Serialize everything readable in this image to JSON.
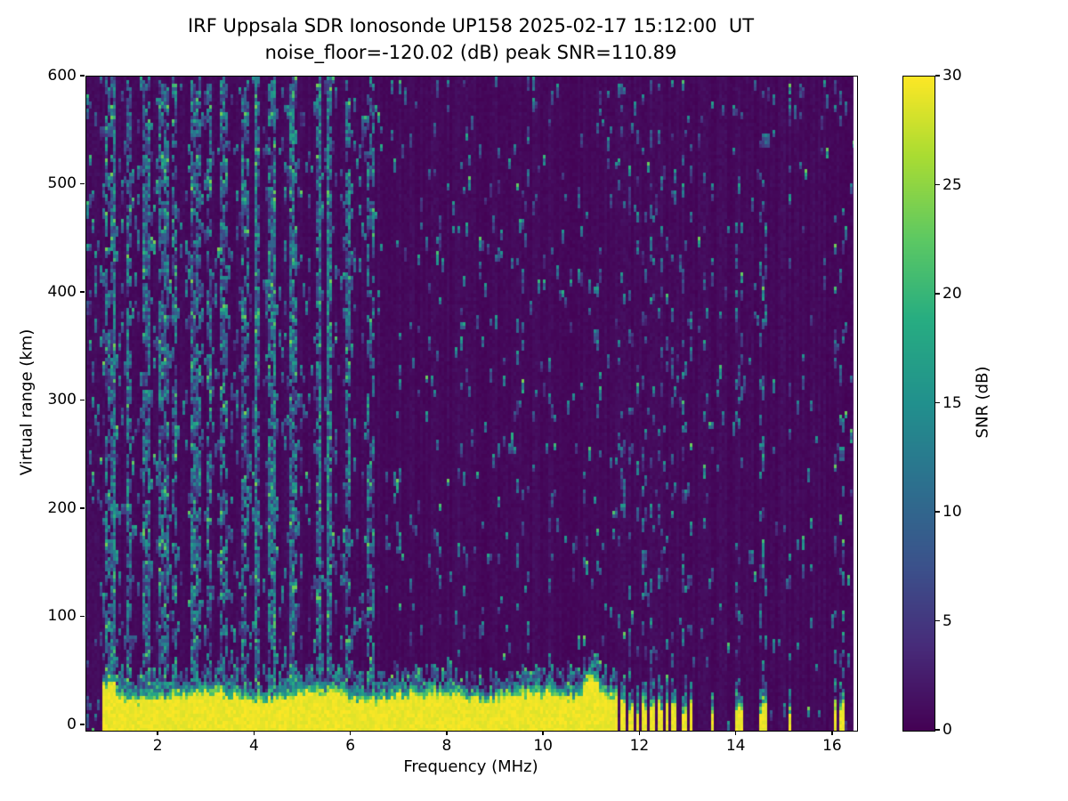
{
  "chart_data": {
    "type": "heatmap",
    "title": "IRF Uppsala SDR Ionosonde UP158 2025-02-17 15:12:00  UT",
    "subtitle": "noise_floor=-120.02 (dB) peak SNR=110.89",
    "xlabel": "Frequency (MHz)",
    "ylabel": "Virtual range (km)",
    "x_range": [
      0.5,
      16.5
    ],
    "y_range": [
      -5,
      600
    ],
    "x_ticks": [
      2,
      4,
      6,
      8,
      10,
      12,
      14,
      16
    ],
    "y_ticks": [
      0,
      100,
      200,
      300,
      400,
      500,
      600
    ],
    "colorbar": {
      "label": "SNR (dB)",
      "range": [
        0,
        30
      ],
      "ticks": [
        0,
        5,
        10,
        15,
        20,
        25,
        30
      ],
      "colormap": "viridis",
      "color_low": "#440154",
      "color_high": "#fde725"
    },
    "features": {
      "ground_echo_band": {
        "description": "solid saturated band (SNR ~30 dB) from plot bottom up to ~25-40 km virtual range with speckled green/teal fringe above",
        "y_km": [
          -5,
          40
        ],
        "freq_continuous_mhz": [
          0.85,
          11.55
        ],
        "snr_db": 30
      },
      "band_bump": {
        "center_mhz": 11.0,
        "top_km": 57
      },
      "low_freq_bump": {
        "center_mhz": 1.0,
        "top_km": 48
      },
      "stripe_frequencies_mhz": [
        11.65,
        11.8,
        11.95,
        12.1,
        12.25,
        12.4,
        12.55,
        12.7,
        12.9,
        13.05,
        13.5,
        14.0,
        14.1,
        14.5,
        14.6,
        15.1,
        16.05,
        16.2
      ],
      "rfi_speckle_columns_mhz": [
        0.95,
        1.05,
        1.4,
        1.75,
        2.05,
        2.15,
        2.35,
        2.7,
        2.85,
        3.05,
        3.35,
        3.8,
        4.05,
        4.35,
        4.8,
        5.3,
        5.55,
        5.95,
        6.4
      ],
      "noise_description": "scattered teal/green speckles over dark purple background, denser below ~6.5 MHz; faint dotted full-height columns at stripe frequencies above 11.6 MHz; narrow white data-gap column at right edge"
    }
  }
}
